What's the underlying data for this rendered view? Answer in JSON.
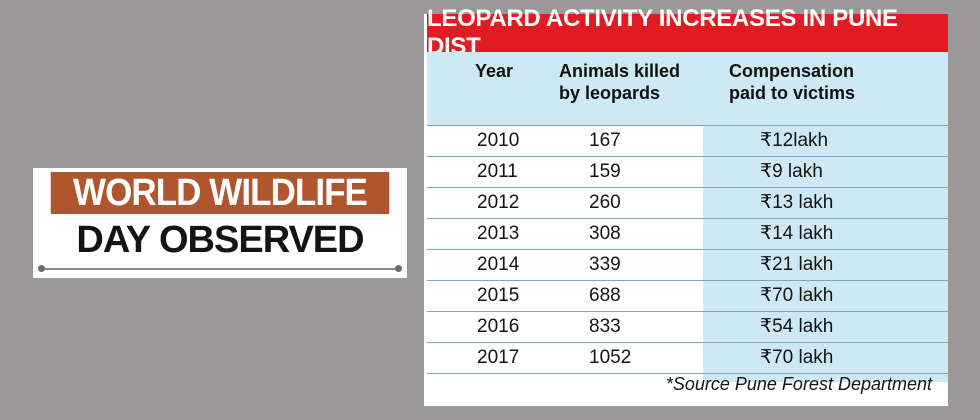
{
  "headline": {
    "line1": "WORLD WILDLIFE",
    "line2": "DAY OBSERVED"
  },
  "table": {
    "title": "LEOPARD ACTIVITY INCREASES IN PUNE DIST",
    "headers": {
      "year": "Year",
      "killed_1": "Animals killed",
      "killed_2": "by leopards",
      "comp_1": "Compensation",
      "comp_2": "paid to victims"
    },
    "rows": [
      {
        "year": "2010",
        "killed": "167",
        "comp": "₹12lakh"
      },
      {
        "year": "2011",
        "killed": "159",
        "comp": "₹9 lakh"
      },
      {
        "year": "2012",
        "killed": "260",
        "comp": "₹13 lakh"
      },
      {
        "year": "2013",
        "killed": "308",
        "comp": "₹14 lakh"
      },
      {
        "year": "2014",
        "killed": "339",
        "comp": "₹21 lakh"
      },
      {
        "year": "2015",
        "killed": "688",
        "comp": "₹70 lakh"
      },
      {
        "year": "2016",
        "killed": "833",
        "comp": "₹54 lakh"
      },
      {
        "year": "2017",
        "killed": "1052",
        "comp": "₹70 lakh"
      }
    ],
    "source": "*Source Pune Forest Department"
  },
  "colors": {
    "page_bg": "#9a9898",
    "headline_bar": "#b0562f",
    "title_bar": "#e21b23",
    "light_blue": "#cfe9f4"
  }
}
